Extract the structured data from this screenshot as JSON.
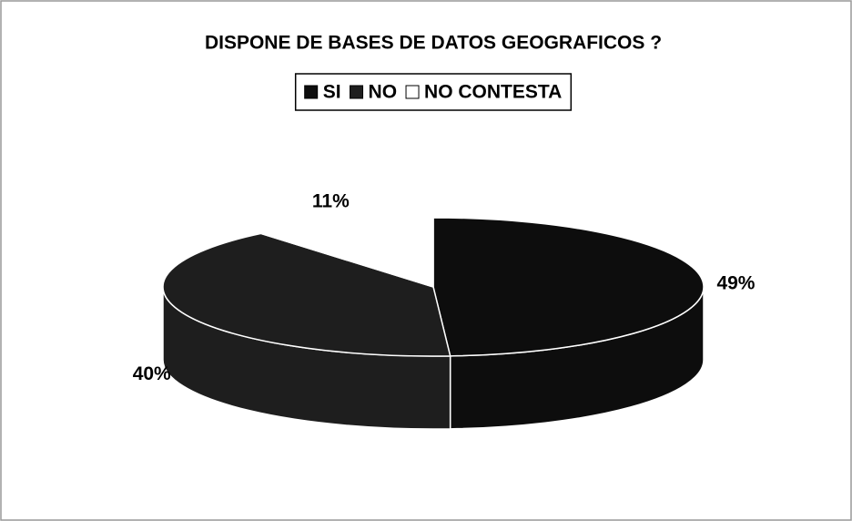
{
  "chart_data": {
    "type": "pie3d",
    "title": "DISPONE DE BASES DE DATOS GEOGRAFICOS ?",
    "categories": [
      "SI",
      "NO",
      "NO CONTESTA"
    ],
    "values": [
      49,
      40,
      11
    ],
    "value_labels": [
      "49%",
      "40%",
      "11%"
    ],
    "colors": [
      "#0d0d0d",
      "#1e1e1e",
      "#ffffff"
    ],
    "legend": "top"
  }
}
